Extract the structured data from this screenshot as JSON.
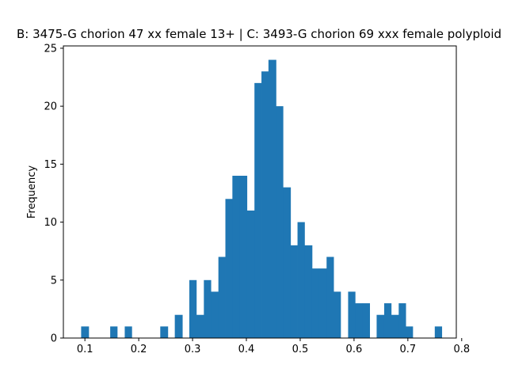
{
  "chart_data": {
    "type": "bar",
    "title": "B: 3475-G chorion 47 xx female 13+ | C: 3493-G chorion 69 xxx female polyploid",
    "xlabel": "",
    "ylabel": "Frequency",
    "xlim": [
      0.06,
      0.79
    ],
    "ylim": [
      0,
      25.2
    ],
    "xticks": [
      0.1,
      0.2,
      0.3,
      0.4,
      0.5,
      0.6,
      0.7,
      0.8
    ],
    "xtick_labels": [
      "0.1",
      "0.2",
      "0.3",
      "0.4",
      "0.5",
      "0.6",
      "0.7",
      "0.8"
    ],
    "yticks": [
      0,
      5,
      10,
      15,
      20,
      25
    ],
    "ytick_labels": [
      "0",
      "5",
      "10",
      "15",
      "20",
      "25"
    ],
    "grid": false,
    "bar_color": "#1f77b4",
    "bins": [
      {
        "x0": 0.093,
        "x1": 0.107,
        "value": 1
      },
      {
        "x0": 0.147,
        "x1": 0.16,
        "value": 1
      },
      {
        "x0": 0.174,
        "x1": 0.187,
        "value": 1
      },
      {
        "x0": 0.24,
        "x1": 0.254,
        "value": 1
      },
      {
        "x0": 0.267,
        "x1": 0.281,
        "value": 2
      },
      {
        "x0": 0.294,
        "x1": 0.307,
        "value": 5
      },
      {
        "x0": 0.307,
        "x1": 0.321,
        "value": 2
      },
      {
        "x0": 0.321,
        "x1": 0.334,
        "value": 5
      },
      {
        "x0": 0.334,
        "x1": 0.348,
        "value": 4
      },
      {
        "x0": 0.348,
        "x1": 0.361,
        "value": 7
      },
      {
        "x0": 0.361,
        "x1": 0.374,
        "value": 12
      },
      {
        "x0": 0.374,
        "x1": 0.388,
        "value": 14
      },
      {
        "x0": 0.388,
        "x1": 0.401,
        "value": 14
      },
      {
        "x0": 0.401,
        "x1": 0.415,
        "value": 11
      },
      {
        "x0": 0.415,
        "x1": 0.428,
        "value": 22
      },
      {
        "x0": 0.428,
        "x1": 0.441,
        "value": 23
      },
      {
        "x0": 0.441,
        "x1": 0.455,
        "value": 24
      },
      {
        "x0": 0.455,
        "x1": 0.468,
        "value": 20
      },
      {
        "x0": 0.468,
        "x1": 0.482,
        "value": 13
      },
      {
        "x0": 0.482,
        "x1": 0.495,
        "value": 8
      },
      {
        "x0": 0.495,
        "x1": 0.508,
        "value": 10
      },
      {
        "x0": 0.508,
        "x1": 0.522,
        "value": 8
      },
      {
        "x0": 0.522,
        "x1": 0.535,
        "value": 6
      },
      {
        "x0": 0.535,
        "x1": 0.549,
        "value": 6
      },
      {
        "x0": 0.549,
        "x1": 0.562,
        "value": 7
      },
      {
        "x0": 0.562,
        "x1": 0.575,
        "value": 4
      },
      {
        "x0": 0.589,
        "x1": 0.602,
        "value": 4
      },
      {
        "x0": 0.602,
        "x1": 0.616,
        "value": 3
      },
      {
        "x0": 0.616,
        "x1": 0.629,
        "value": 3
      },
      {
        "x0": 0.642,
        "x1": 0.656,
        "value": 2
      },
      {
        "x0": 0.656,
        "x1": 0.669,
        "value": 3
      },
      {
        "x0": 0.669,
        "x1": 0.683,
        "value": 2
      },
      {
        "x0": 0.683,
        "x1": 0.696,
        "value": 3
      },
      {
        "x0": 0.696,
        "x1": 0.709,
        "value": 1
      },
      {
        "x0": 0.75,
        "x1": 0.763,
        "value": 1
      }
    ]
  }
}
